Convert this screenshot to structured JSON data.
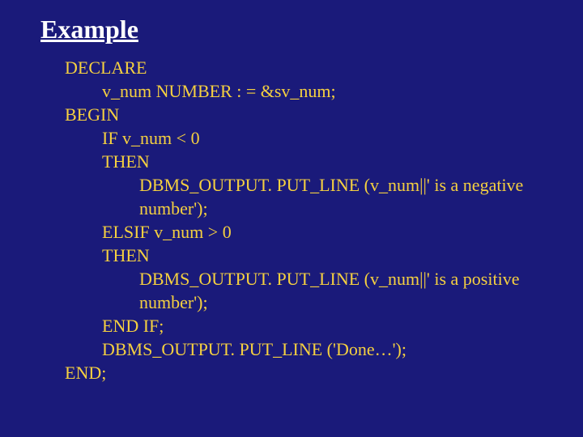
{
  "heading": "Example",
  "colors": {
    "background": "#1a1a7a",
    "heading_text": "#ffffff",
    "code_text": "#f5d040"
  },
  "typography": {
    "heading_fontsize": 32,
    "heading_fontweight": "bold",
    "heading_underline": true,
    "code_fontsize": 22,
    "font_family": "Times New Roman"
  },
  "code": {
    "lines": [
      {
        "text": "DECLARE",
        "indent": 0
      },
      {
        "text": "v_num NUMBER : = &sv_num;",
        "indent": 1
      },
      {
        "text": "BEGIN",
        "indent": 0
      },
      {
        "text": "IF v_num < 0",
        "indent": 1
      },
      {
        "text": "THEN",
        "indent": 1
      },
      {
        "text": "DBMS_OUTPUT. PUT_LINE (v_num||' is a negative",
        "indent": 2
      },
      {
        "text": "number');",
        "indent": 2
      },
      {
        "text": "ELSIF v_num > 0",
        "indent": 1
      },
      {
        "text": "THEN",
        "indent": 1
      },
      {
        "text": "DBMS_OUTPUT. PUT_LINE (v_num||' is a positive",
        "indent": 2
      },
      {
        "text": "number');",
        "indent": 2
      },
      {
        "text": "END IF;",
        "indent": 1
      },
      {
        "text": "DBMS_OUTPUT. PUT_LINE ('Done…');",
        "indent": 1
      },
      {
        "text": "END;",
        "indent": 0
      }
    ]
  }
}
